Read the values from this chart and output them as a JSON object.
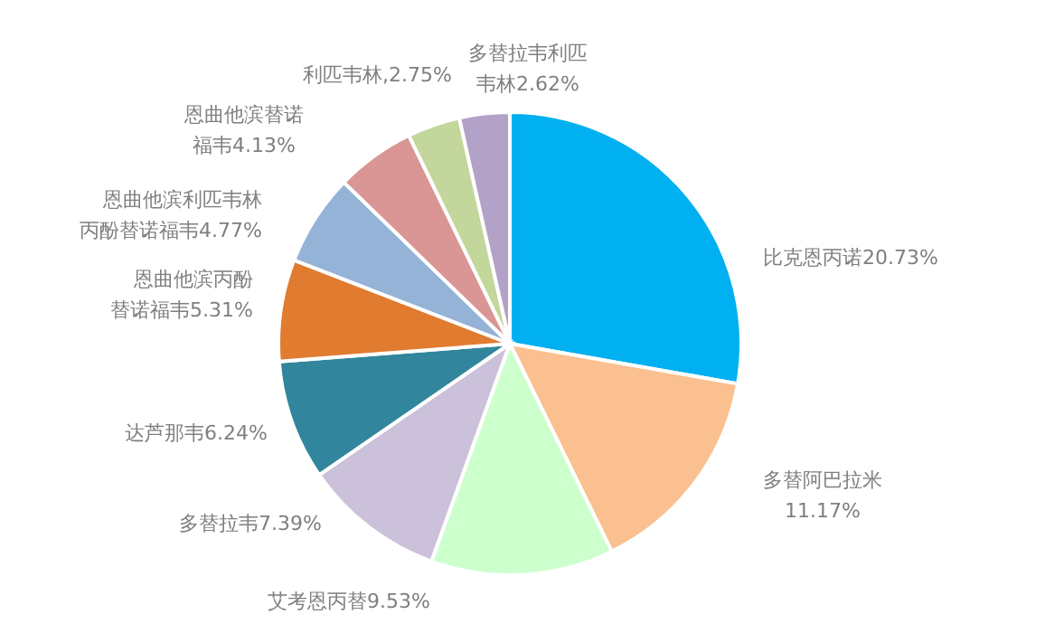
{
  "chart_data": {
    "type": "pie",
    "categories": [
      "比克恩丙诺",
      "多替阿巴拉米",
      "艾考恩丙替",
      "多替拉韦",
      "达芦那韦",
      "恩曲他滨丙酚替诺福韦",
      "恩曲他滨利匹韦林丙酚替诺福韦",
      "恩曲他滨替诺福韦",
      "利匹韦林",
      "多替拉韦利匹韦林"
    ],
    "values": [
      20.73,
      11.17,
      9.53,
      7.39,
      6.24,
      5.31,
      4.77,
      4.13,
      2.75,
      2.62
    ],
    "value_labels": [
      "20.73%",
      "11.17%",
      "9.53%",
      "7.39%",
      "6.24%",
      "5.31%",
      "4.77%",
      "4.13%",
      ",2.75%",
      "2.62%"
    ],
    "colors": [
      "#00b0f0",
      "#fac090",
      "#ccffcc",
      "#ccc1da",
      "#31859c",
      "#e07b30",
      "#95b3d7",
      "#d99694",
      "#c3d69b",
      "#b3a2c7"
    ],
    "legend": false
  }
}
